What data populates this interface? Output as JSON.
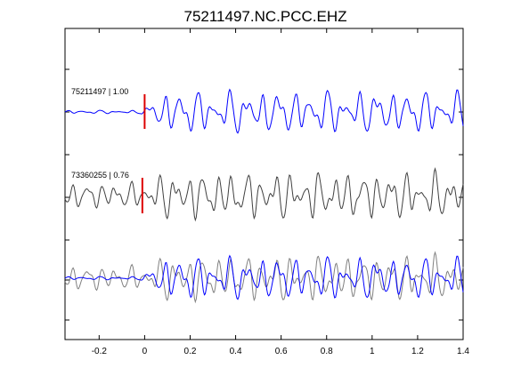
{
  "chart_data": {
    "type": "line",
    "title": "75211497.NC.PCC.EHZ",
    "xlabel": "",
    "ylabel": "",
    "xlim": [
      -0.35,
      1.4
    ],
    "xticks": [
      -0.2,
      0,
      0.2,
      0.4,
      0.6,
      0.8,
      1,
      1.2,
      1.4
    ],
    "xtick_labels": [
      "-0.2",
      "0",
      "0.2",
      "0.4",
      "0.6",
      "0.8",
      "1",
      "1.2",
      "1.4"
    ],
    "grid": false,
    "traces": [
      {
        "label": "75211497 | 1.00",
        "color": "#0000ff",
        "pick_time": 0.0
      },
      {
        "label": "73360255 | 0.76",
        "color": "#404040",
        "pick_time": -0.01
      }
    ],
    "overlay_colors": [
      "#0000ff",
      "#808080"
    ],
    "pick_color": "#dd0000",
    "colors": {
      "background": "#ffffff",
      "axes": "#000000"
    }
  }
}
